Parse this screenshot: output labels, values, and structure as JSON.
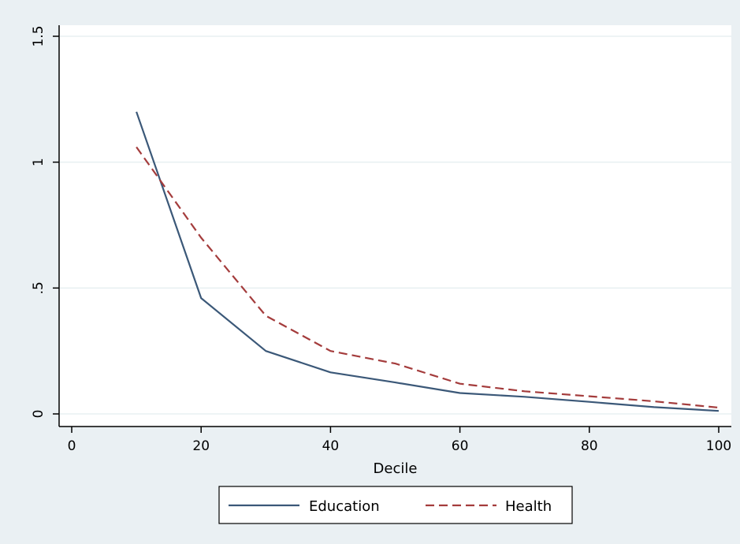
{
  "colors": {
    "outer_background": "#eaf0f3",
    "plot_background": "#ffffff",
    "gridline": "#e8f0f2",
    "axis": "#000000",
    "education": "#3b5878",
    "health": "#a43c3c"
  },
  "chart_data": {
    "type": "line",
    "title": "",
    "xlabel": "Decile",
    "ylabel": "",
    "xlim": [
      0,
      100
    ],
    "ylim": [
      0,
      1.5
    ],
    "x_ticks": [
      0,
      20,
      40,
      60,
      80,
      100
    ],
    "x_tick_labels": [
      "0",
      "20",
      "40",
      "60",
      "80",
      "100"
    ],
    "y_ticks": [
      0,
      0.5,
      1,
      1.5
    ],
    "y_tick_labels": [
      "0",
      ".5",
      "1",
      "1.5"
    ],
    "grid": "horizontal",
    "legend_position": "bottom",
    "series": [
      {
        "name": "Education",
        "style": "solid",
        "color": "#3b5878",
        "x": [
          10,
          20,
          30,
          40,
          50,
          60,
          70,
          80,
          90,
          100
        ],
        "y": [
          1.2,
          0.46,
          0.25,
          0.165,
          0.125,
          0.083,
          0.068,
          0.048,
          0.027,
          0.012
        ]
      },
      {
        "name": "Health",
        "style": "dashed",
        "color": "#a43c3c",
        "x": [
          10,
          20,
          30,
          40,
          50,
          60,
          70,
          80,
          90,
          100
        ],
        "y": [
          1.06,
          0.7,
          0.39,
          0.25,
          0.2,
          0.12,
          0.09,
          0.07,
          0.05,
          0.025
        ]
      }
    ]
  }
}
